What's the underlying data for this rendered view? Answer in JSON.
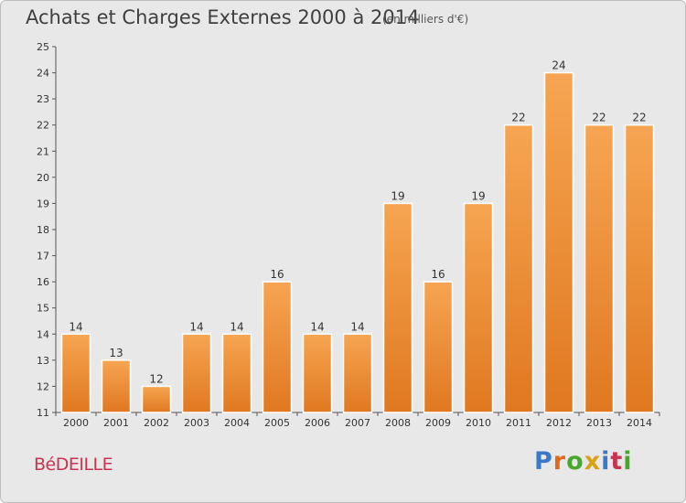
{
  "header": {
    "title": "Achats et Charges Externes 2000 à 2014",
    "subtitle": "(en milliers d'€)"
  },
  "footer": {
    "commune": "BéDEILLE",
    "logo_text": "Proxiti",
    "logo_colors": [
      "#3a78c8",
      "#e06a1a",
      "#49a82c",
      "#d6a318",
      "#3a78c8",
      "#c8334f",
      "#49a82c"
    ]
  },
  "colors": {
    "bar_light": "#f6a552",
    "bar_dark": "#e07820",
    "plot_background": "#e8e8e8",
    "grid": "#d0d0d0"
  },
  "chart_data": {
    "type": "bar",
    "title": "Achats et Charges Externes 2000 à 2014",
    "subtitle": "(en milliers d'€)",
    "xlabel": "",
    "ylabel": "",
    "categories": [
      "2000",
      "2001",
      "2002",
      "2003",
      "2004",
      "2005",
      "2006",
      "2007",
      "2008",
      "2009",
      "2010",
      "2011",
      "2012",
      "2013",
      "2014"
    ],
    "values": [
      14,
      13,
      12,
      14,
      14,
      16,
      14,
      14,
      19,
      16,
      19,
      22,
      24,
      22,
      22
    ],
    "value_labels": [
      "14",
      "13",
      "12",
      "14",
      "14",
      "16",
      "14",
      "14",
      "19",
      "16",
      "19",
      "22",
      "24",
      "22",
      "22"
    ],
    "ylim": [
      11,
      25
    ],
    "yticks": [
      "11",
      "12",
      "13",
      "14",
      "15",
      "16",
      "17",
      "18",
      "19",
      "20",
      "21",
      "22",
      "23",
      "24",
      "25"
    ],
    "grid": false,
    "legend": "none"
  }
}
